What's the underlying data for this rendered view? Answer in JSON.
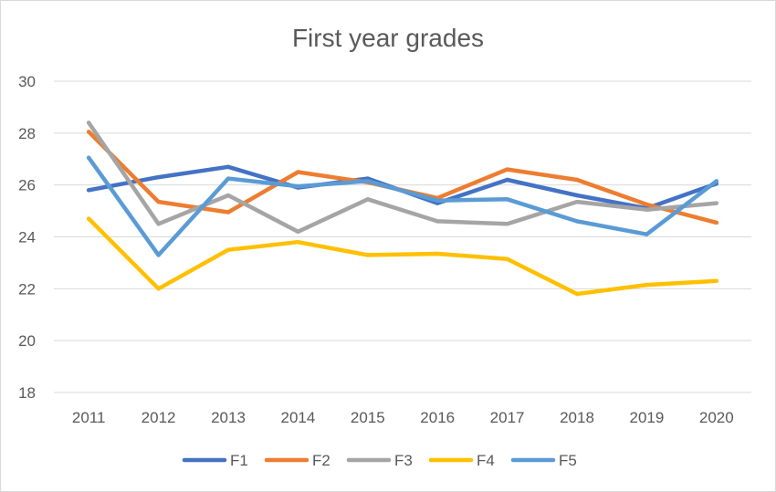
{
  "chart_data": {
    "type": "line",
    "title": "First year grades",
    "xlabel": "",
    "ylabel": "",
    "categories": [
      "2011",
      "2012",
      "2013",
      "2014",
      "2015",
      "2016",
      "2017",
      "2018",
      "2019",
      "2020"
    ],
    "ylim": [
      18,
      30
    ],
    "yticks": [
      "18",
      "20",
      "22",
      "24",
      "26",
      "28",
      "30"
    ],
    "grid": "horizontal",
    "legend_position": "bottom",
    "series": [
      {
        "name": "F1",
        "color": "#4472C4",
        "values": [
          25.8,
          26.3,
          26.7,
          25.9,
          26.25,
          25.3,
          26.2,
          25.6,
          25.1,
          26.05
        ]
      },
      {
        "name": "F2",
        "color": "#ED7D31",
        "values": [
          28.05,
          25.35,
          24.95,
          26.5,
          26.1,
          25.5,
          26.6,
          26.2,
          25.25,
          24.55
        ]
      },
      {
        "name": "F3",
        "color": "#A5A5A5",
        "values": [
          28.4,
          24.5,
          25.6,
          24.2,
          25.45,
          24.6,
          24.5,
          25.35,
          25.05,
          25.3
        ]
      },
      {
        "name": "F4",
        "color": "#FFC000",
        "values": [
          24.7,
          22.0,
          23.5,
          23.8,
          23.3,
          23.35,
          23.15,
          21.8,
          22.15,
          22.3
        ]
      },
      {
        "name": "F5",
        "color": "#5B9BD5",
        "values": [
          27.05,
          23.3,
          26.25,
          25.95,
          26.15,
          25.4,
          25.45,
          24.6,
          24.1,
          26.15
        ]
      }
    ]
  }
}
